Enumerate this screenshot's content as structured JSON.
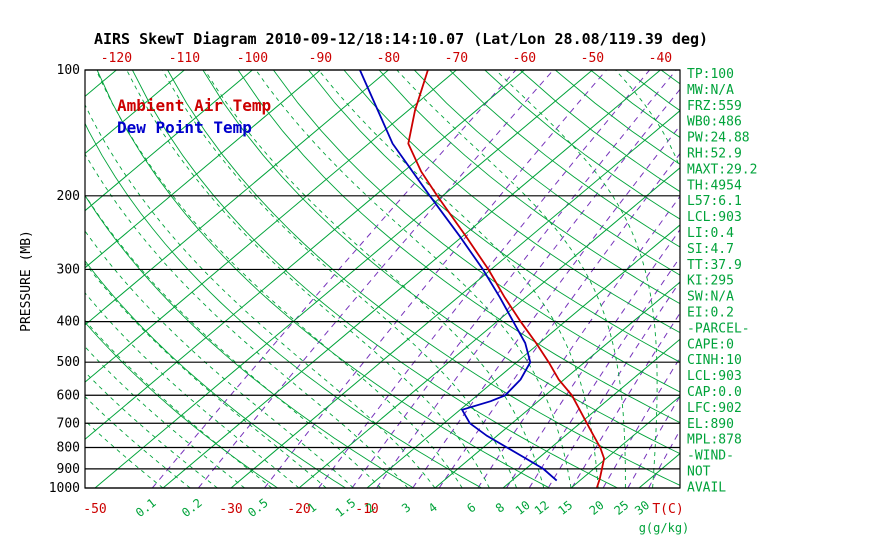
{
  "title": "AIRS SkewT Diagram 2010-09-12/18:14:10.07 (Lat/Lon 28.08/119.39 deg)",
  "legend": {
    "temp": "Ambient Air Temp",
    "dewpoint": "Dew Point Temp"
  },
  "axes": {
    "pressure_label": "PRESSURE (MB)",
    "pressure_ticks": [
      100,
      200,
      300,
      400,
      500,
      600,
      700,
      800,
      900,
      1000
    ],
    "top_temp_ticks": [
      -120,
      -110,
      -100,
      -90,
      -80,
      -70,
      -60,
      -50,
      -40
    ],
    "bottom_temp_ticks": [
      -50,
      -30,
      -20,
      -10
    ],
    "temp_unit_label": "T(C)",
    "mixing_ratio_values": [
      0.1,
      0.2,
      0.5,
      1,
      1.5,
      2,
      3,
      4,
      6,
      8,
      10,
      12,
      15,
      20,
      25,
      30
    ],
    "mixing_unit_label": "g(g/kg)"
  },
  "stats_panel": [
    "TP:100",
    "MW:N/A",
    "FRZ:559",
    "WB0:486",
    "PW:24.88",
    "RH:52.9",
    "MAXT:29.2",
    "TH:4954",
    "L57:6.1",
    "LCL:903",
    "LI:0.4",
    "SI:4.7",
    "TT:37.9",
    "KI:295",
    "SW:N/A",
    "EI:0.2",
    "-PARCEL-",
    "CAPE:0",
    "CINH:10",
    "LCL:903",
    "CAP:0.0",
    "LFC:902",
    "EL:890",
    "MPL:878",
    "-WIND-",
    "NOT",
    "AVAIL"
  ],
  "colors": {
    "line_green": "#00a33a",
    "label_green": "#00a33a",
    "mixing_purple": "#7733bb",
    "axis_red": "#cc0000",
    "temp_red": "#cc0000",
    "dewpoint_blue": "#0000bb",
    "black": "#000000"
  },
  "chart_data": {
    "type": "line",
    "variant": "skew-t-log-p",
    "title": "AIRS SkewT Diagram 2010-09-12/18:14:10.07 (Lat/Lon 28.08/119.39 deg)",
    "x_axis": {
      "label": "T(C)",
      "top_ticks": [
        -120,
        -110,
        -100,
        -90,
        -80,
        -70,
        -60,
        -50,
        -40
      ],
      "bottom_ticks": [
        -50,
        -30,
        -20,
        -10
      ],
      "skew": "45deg-right-with-height"
    },
    "y_axis": {
      "label": "PRESSURE (MB)",
      "scale": "log",
      "range": [
        100,
        1000
      ],
      "ticks": [
        100,
        200,
        300,
        400,
        500,
        600,
        700,
        800,
        900,
        1000
      ]
    },
    "series": [
      {
        "name": "Ambient Air Temp",
        "color": "#cc0000",
        "points_p_t": [
          [
            1000,
            23.8
          ],
          [
            950,
            22.6
          ],
          [
            900,
            21.2
          ],
          [
            850,
            19.7
          ],
          [
            800,
            17.2
          ],
          [
            750,
            14.2
          ],
          [
            700,
            11.0
          ],
          [
            650,
            7.6
          ],
          [
            600,
            3.9
          ],
          [
            550,
            -0.8
          ],
          [
            500,
            -5.3
          ],
          [
            450,
            -10.5
          ],
          [
            400,
            -16.5
          ],
          [
            350,
            -23.1
          ],
          [
            300,
            -30.4
          ],
          [
            250,
            -39.5
          ],
          [
            200,
            -50.8
          ],
          [
            175,
            -57.4
          ],
          [
            150,
            -64.2
          ],
          [
            125,
            -69.0
          ],
          [
            100,
            -74.2
          ]
        ]
      },
      {
        "name": "Dew Point Temp",
        "color": "#0000bb",
        "points_p_t": [
          [
            960,
            16.6
          ],
          [
            900,
            12.6
          ],
          [
            850,
            8.2
          ],
          [
            800,
            3.5
          ],
          [
            750,
            -1.5
          ],
          [
            700,
            -6.2
          ],
          [
            650,
            -9.7
          ],
          [
            620,
            -7.0
          ],
          [
            600,
            -5.9
          ],
          [
            550,
            -6.4
          ],
          [
            500,
            -8.0
          ],
          [
            450,
            -12.1
          ],
          [
            400,
            -17.6
          ],
          [
            350,
            -23.8
          ],
          [
            300,
            -31.2
          ],
          [
            250,
            -40.4
          ],
          [
            200,
            -51.9
          ],
          [
            150,
            -66.5
          ],
          [
            100,
            -84.2
          ]
        ]
      }
    ],
    "isopleths": {
      "isotherms_c": {
        "from": -160,
        "to": 60,
        "step": 10
      },
      "dry_adiabats_k": {
        "from": 250,
        "to": 450,
        "step": 10
      },
      "moist_adiabats_start_c": {
        "from": -40,
        "to": 40,
        "step": 4
      },
      "mixing_ratio_gkg": [
        0.1,
        0.2,
        0.5,
        1,
        1.5,
        2,
        3,
        4,
        6,
        8,
        10,
        12,
        15,
        20,
        25,
        30
      ]
    }
  }
}
